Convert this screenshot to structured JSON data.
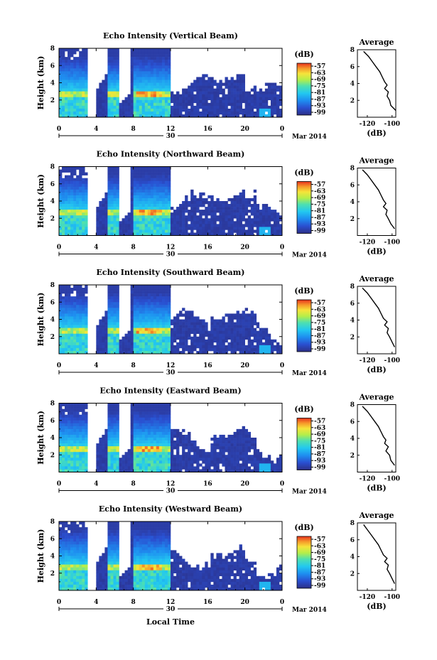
{
  "figure": {
    "shared_xlabel": "Local Time",
    "date_label": "Mar 2014",
    "colorbar_unit": "(dB)",
    "average_title": "Average",
    "average_xlabel": "(dB)",
    "panel_ylabel": "Height (km)"
  },
  "chart_data": [
    {
      "type": "heatmap",
      "title": "Echo Intensity (Vertical Beam)",
      "ylabel": "Height (km)",
      "x_ticks": [
        "0",
        "4",
        "8",
        "12",
        "16",
        "20",
        "0"
      ],
      "day_label": "30",
      "y_ticks": [
        "2",
        "4",
        "6",
        "8"
      ],
      "colorbar_ticks": [
        "-57",
        "-63",
        "-69",
        "-75",
        "-81",
        "-87",
        "-93",
        "-99"
      ],
      "average_profile": {
        "x_ticks": [
          "-120",
          "-100"
        ],
        "xlim": [
          -128,
          -97
        ],
        "y": [
          0.8,
          1.4,
          2,
          2.5,
          3,
          3.4,
          3.8,
          4.2,
          4.8,
          5.4,
          6,
          6.6,
          7.2,
          7.8
        ],
        "x": [
          -97,
          -101,
          -102,
          -104,
          -103,
          -106,
          -104,
          -106,
          -108,
          -110,
          -113,
          -116,
          -119,
          -123
        ]
      }
    },
    {
      "type": "heatmap",
      "title": "Echo Intensity (Northward Beam)",
      "ylabel": "Height (km)",
      "x_ticks": [
        "0",
        "4",
        "8",
        "12",
        "16",
        "20",
        "0"
      ],
      "day_label": "30",
      "y_ticks": [
        "2",
        "4",
        "6",
        "8"
      ],
      "colorbar_ticks": [
        "-57",
        "-63",
        "-69",
        "-75",
        "-81",
        "-87",
        "-93",
        "-99"
      ],
      "average_profile": {
        "x_ticks": [
          "-120",
          "-100"
        ],
        "xlim": [
          -128,
          -97
        ],
        "y": [
          0.8,
          1.4,
          2,
          2.5,
          3,
          3.4,
          3.8,
          4.2,
          4.8,
          5.4,
          6,
          6.6,
          7.2,
          7.8
        ],
        "x": [
          -98,
          -101,
          -103,
          -105,
          -104,
          -107,
          -105,
          -107,
          -109,
          -111,
          -114,
          -117,
          -120,
          -124
        ]
      }
    },
    {
      "type": "heatmap",
      "title": "Echo Intensity (Southward Beam)",
      "ylabel": "Height (km)",
      "x_ticks": [
        "0",
        "4",
        "8",
        "12",
        "16",
        "20",
        "0"
      ],
      "day_label": "30",
      "y_ticks": [
        "2",
        "4",
        "6",
        "8"
      ],
      "colorbar_ticks": [
        "-57",
        "-63",
        "-69",
        "-75",
        "-81",
        "-87",
        "-93",
        "-99"
      ],
      "average_profile": {
        "x_ticks": [
          "-120",
          "-100"
        ],
        "xlim": [
          -128,
          -97
        ],
        "y": [
          0.8,
          1.4,
          2,
          2.5,
          3,
          3.4,
          3.8,
          4.2,
          4.8,
          5.4,
          6,
          6.6,
          7.2,
          7.8
        ],
        "x": [
          -98,
          -100,
          -102,
          -104,
          -103,
          -106,
          -104,
          -107,
          -109,
          -111,
          -114,
          -117,
          -120,
          -124
        ]
      }
    },
    {
      "type": "heatmap",
      "title": "Echo Intensity (Eastward Beam)",
      "ylabel": "Height (km)",
      "x_ticks": [
        "0",
        "4",
        "8",
        "12",
        "16",
        "20",
        "0"
      ],
      "day_label": "30",
      "y_ticks": [
        "2",
        "4",
        "6",
        "8"
      ],
      "colorbar_ticks": [
        "-57",
        "-63",
        "-69",
        "-75",
        "-81",
        "-87",
        "-93",
        "-99"
      ],
      "average_profile": {
        "x_ticks": [
          "-120",
          "-100"
        ],
        "xlim": [
          -128,
          -97
        ],
        "y": [
          0.8,
          1.4,
          2,
          2.5,
          3,
          3.4,
          3.8,
          4.2,
          4.8,
          5.4,
          6,
          6.6,
          7.2,
          7.8
        ],
        "x": [
          -98,
          -101,
          -102,
          -105,
          -103,
          -106,
          -105,
          -107,
          -109,
          -111,
          -114,
          -117,
          -120,
          -124
        ]
      }
    },
    {
      "type": "heatmap",
      "title": "Echo Intensity (Westward Beam)",
      "ylabel": "Height (km)",
      "x_ticks": [
        "0",
        "4",
        "8",
        "12",
        "16",
        "20",
        "0"
      ],
      "day_label": "30",
      "y_ticks": [
        "2",
        "4",
        "6",
        "8"
      ],
      "colorbar_ticks": [
        "-57",
        "-63",
        "-69",
        "-75",
        "-81",
        "-87",
        "-93",
        "-99"
      ],
      "average_profile": {
        "x_ticks": [
          "-120",
          "-100"
        ],
        "xlim": [
          -128,
          -97
        ],
        "y": [
          0.8,
          1.4,
          2,
          2.5,
          3,
          3.4,
          3.8,
          4.2,
          4.8,
          5.4,
          6,
          6.6,
          7.2,
          7.8
        ],
        "x": [
          -98,
          -100,
          -102,
          -104,
          -103,
          -106,
          -104,
          -107,
          -109,
          -111,
          -114,
          -117,
          -120,
          -123
        ]
      }
    }
  ]
}
